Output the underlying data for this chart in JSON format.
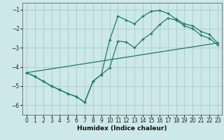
{
  "xlabel": "Humidex (Indice chaleur)",
  "bg_color": "#cde8e8",
  "grid_color": "#a8cccc",
  "line_color": "#1a7a6e",
  "xlim": [
    -0.5,
    23.5
  ],
  "ylim": [
    -6.5,
    -0.65
  ],
  "yticks": [
    -6,
    -5,
    -4,
    -3,
    -2,
    -1
  ],
  "xticks": [
    0,
    1,
    2,
    3,
    4,
    5,
    6,
    7,
    8,
    9,
    10,
    11,
    12,
    13,
    14,
    15,
    16,
    17,
    18,
    19,
    20,
    21,
    22,
    23
  ],
  "line1_x": [
    0,
    1,
    2,
    3,
    4,
    5,
    6,
    7,
    8,
    9,
    10,
    11,
    12,
    13,
    14,
    15,
    16,
    17,
    18,
    19,
    20,
    21,
    22,
    23
  ],
  "line1_y": [
    -4.3,
    -4.5,
    -4.75,
    -5.0,
    -5.2,
    -5.4,
    -5.55,
    -5.85,
    -4.75,
    -4.4,
    -2.6,
    -1.35,
    -1.55,
    -1.75,
    -1.35,
    -1.1,
    -1.05,
    -1.2,
    -1.5,
    -1.75,
    -1.85,
    -2.15,
    -2.3,
    -2.75
  ],
  "line2_x": [
    0,
    1,
    2,
    3,
    4,
    5,
    6,
    7,
    8,
    9,
    10,
    11,
    12,
    13,
    14,
    15,
    16,
    17,
    18,
    19,
    20,
    21,
    22,
    23
  ],
  "line2_y": [
    -4.3,
    -4.5,
    -4.75,
    -5.0,
    -5.2,
    -5.4,
    -5.55,
    -5.85,
    -4.75,
    -4.4,
    -4.05,
    -2.65,
    -2.7,
    -3.0,
    -2.55,
    -2.25,
    -1.8,
    -1.45,
    -1.55,
    -1.85,
    -2.0,
    -2.35,
    -2.5,
    -2.85
  ],
  "line3_x": [
    0,
    23
  ],
  "line3_y": [
    -4.3,
    -2.75
  ]
}
